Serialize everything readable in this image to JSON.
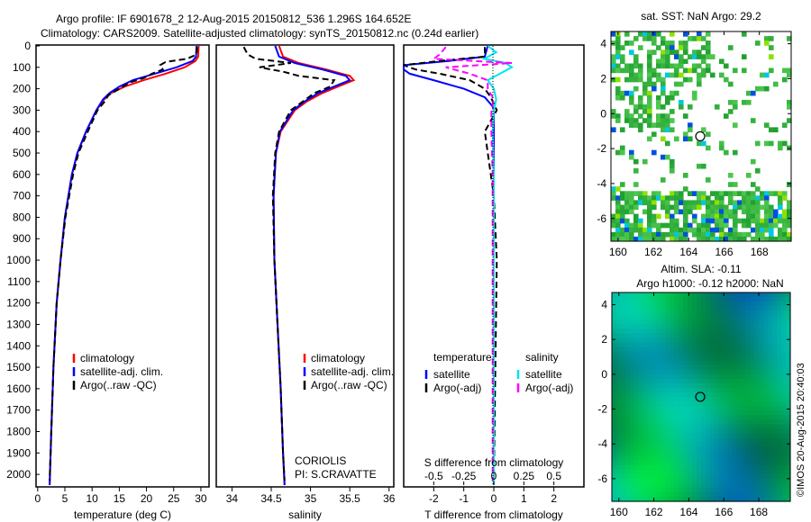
{
  "title": {
    "line1": "Argo profile: IF 6901678_2 12-Aug-2015 20150812_536 1.296S 164.652E",
    "line2": "Climatology: CARS2009. Satellite-adjusted climatology: synTS_20150812.nc (0.24d earlier)"
  },
  "colors": {
    "climatology": "#ff0000",
    "satellite": "#0000ff",
    "argo": "#000000",
    "sal_satellite": "#00e5ee",
    "sal_argo": "#ff00ff"
  },
  "chart_data": [
    {
      "type": "line",
      "id": "temperature",
      "xlabel": "temperature (deg C)",
      "ylabel": "",
      "xlim": [
        -0.3,
        31.5
      ],
      "ylim": [
        2050,
        0
      ],
      "xticks": [
        0,
        5,
        10,
        15,
        20,
        25,
        30
      ],
      "yticks": [
        0,
        100,
        200,
        300,
        400,
        500,
        600,
        700,
        800,
        900,
        1000,
        1100,
        1200,
        1300,
        1400,
        1500,
        1600,
        1700,
        1800,
        1900,
        2000
      ],
      "legend": [
        "climatology",
        "satellite-adj. clim.",
        "Argo(..raw -QC)"
      ],
      "series": [
        {
          "name": "climatology",
          "depth": [
            0,
            50,
            70,
            100,
            130,
            160,
            190,
            220,
            250,
            300,
            400,
            500,
            600,
            800,
            1000,
            1200,
            1500,
            1800,
            2050
          ],
          "values": [
            29.6,
            29.5,
            29.0,
            27.0,
            23.5,
            19.5,
            16.0,
            13.5,
            12.2,
            10.8,
            8.9,
            7.3,
            6.3,
            5.0,
            4.2,
            3.5,
            2.9,
            2.5,
            2.2
          ]
        },
        {
          "name": "satellite-adj. clim.",
          "depth": [
            0,
            50,
            70,
            100,
            130,
            160,
            190,
            220,
            250,
            300,
            400,
            500,
            600,
            800,
            1000,
            1200,
            1500,
            1800,
            2050
          ],
          "values": [
            29.2,
            29.1,
            28.5,
            25.5,
            21.5,
            17.5,
            15.0,
            13.2,
            12.0,
            10.8,
            8.9,
            7.3,
            6.3,
            5.0,
            4.2,
            3.5,
            2.9,
            2.5,
            2.2
          ]
        },
        {
          "name": "Argo(..raw -QC)",
          "depth": [
            5,
            40,
            60,
            75,
            90,
            110,
            130,
            150,
            170,
            200,
            230,
            260,
            300,
            400,
            500,
            600,
            800,
            1000,
            1200,
            1500,
            1800,
            2030
          ],
          "values": [
            29.3,
            29.2,
            27.5,
            23.5,
            22.5,
            23.0,
            21.0,
            19.5,
            17.0,
            15.0,
            13.0,
            12.3,
            11.0,
            9.2,
            7.5,
            6.5,
            5.1,
            4.2,
            3.5,
            2.9,
            2.5,
            2.2
          ]
        }
      ]
    },
    {
      "type": "line",
      "id": "salinity",
      "xlabel": "salinity",
      "xlim": [
        33.8,
        36.06
      ],
      "ylim": [
        2050,
        0
      ],
      "xticks": [
        34,
        34.5,
        35,
        35.5,
        36
      ],
      "legend": [
        "climatology",
        "satellite-adj. clim.",
        "Argo(..raw -QC)"
      ],
      "annotation": [
        "CORIOLIS",
        "PI: S.CRAVATTE"
      ],
      "series": [
        {
          "name": "climatology",
          "depth": [
            0,
            50,
            80,
            110,
            140,
            160,
            190,
            220,
            260,
            300,
            400,
            500,
            700,
            1000,
            1300,
            1600,
            1900,
            2050
          ],
          "values": [
            34.6,
            34.65,
            34.85,
            35.2,
            35.5,
            35.55,
            35.35,
            35.15,
            34.95,
            34.8,
            34.62,
            34.56,
            34.53,
            34.54,
            34.58,
            34.62,
            34.65,
            34.67
          ]
        },
        {
          "name": "satellite-adj. clim.",
          "depth": [
            0,
            50,
            80,
            110,
            140,
            160,
            190,
            220,
            260,
            300,
            400,
            500,
            700,
            1000,
            1300,
            1600,
            1900,
            2050
          ],
          "values": [
            34.55,
            34.6,
            34.8,
            35.15,
            35.45,
            35.5,
            35.3,
            35.1,
            34.92,
            34.78,
            34.61,
            34.56,
            34.53,
            34.54,
            34.58,
            34.62,
            34.65,
            34.67
          ]
        },
        {
          "name": "Argo(..raw -QC)",
          "depth": [
            5,
            40,
            60,
            80,
            100,
            120,
            140,
            160,
            190,
            220,
            260,
            300,
            400,
            500,
            700,
            1000,
            1300,
            1600,
            1900,
            2030
          ],
          "values": [
            34.15,
            34.2,
            34.3,
            34.75,
            34.35,
            34.65,
            34.85,
            35.3,
            35.25,
            35.05,
            34.9,
            34.75,
            34.6,
            34.55,
            34.52,
            34.54,
            34.58,
            34.62,
            34.65,
            34.67
          ]
        }
      ]
    },
    {
      "type": "line",
      "id": "difference",
      "xlabel": "T difference from climatology",
      "x2label": "S difference from climatology",
      "xlim": [
        -3,
        3
      ],
      "x2lim": [
        -0.75,
        0.75
      ],
      "ylim": [
        2050,
        0
      ],
      "xticks": [
        -2,
        -1,
        0,
        1,
        2
      ],
      "x2ticks": [
        "-0.5",
        "-0.25",
        "0",
        "0.25",
        "0.5"
      ],
      "legend": {
        "temperature": [
          "temperature",
          "satellite",
          "Argo(-adj)"
        ],
        "salinity": [
          "salinity",
          "satellite",
          "Argo(-adj)"
        ]
      },
      "series": [
        {
          "name": "T satellite",
          "depth": [
            0,
            50,
            70,
            90,
            110,
            130,
            160,
            200,
            240,
            280,
            300,
            400,
            600,
            1000,
            2050
          ],
          "values": [
            -0.2,
            -0.3,
            -1.5,
            -3.0,
            -3.0,
            -2.8,
            -2.0,
            -1.0,
            -0.3,
            -0.05,
            0,
            0,
            0,
            0,
            0
          ]
        },
        {
          "name": "T Argo(-adj)",
          "depth": [
            5,
            50,
            70,
            90,
            110,
            130,
            160,
            200,
            240,
            300,
            400,
            500,
            700,
            1000,
            1500,
            2030
          ],
          "values": [
            -0.3,
            -0.3,
            -1.8,
            -3.0,
            -2.6,
            -1.8,
            -0.8,
            -0.3,
            -0.1,
            0.1,
            -0.3,
            -0.2,
            0.0,
            0.1,
            0.05,
            0.0
          ]
        },
        {
          "name": "S satellite",
          "depth": [
            0,
            30,
            60,
            80,
            100,
            130,
            160,
            200,
            250,
            300,
            400,
            600,
            1000,
            2050
          ],
          "values": [
            -0.05,
            0.02,
            -0.08,
            0.1,
            0.15,
            0.05,
            -0.05,
            0.0,
            0.02,
            0.0,
            -0.01,
            0.0,
            0.0,
            0.0
          ]
        },
        {
          "name": "S Argo(-adj)",
          "depth": [
            5,
            40,
            60,
            80,
            100,
            130,
            160,
            200,
            250,
            300,
            400,
            600,
            1000,
            2030
          ],
          "values": [
            -0.4,
            -0.45,
            -0.5,
            0.15,
            -0.4,
            -0.2,
            -0.05,
            -0.05,
            0.0,
            -0.02,
            -0.02,
            -0.01,
            -0.01,
            -0.01
          ]
        }
      ]
    },
    {
      "type": "heatmap",
      "id": "sst_map",
      "title": "sat. SST: NaN Argo: 29.2",
      "xlim": [
        159.6,
        169.8
      ],
      "ylim": [
        -7.3,
        4.7
      ],
      "xticks": [
        160,
        162,
        164,
        166,
        168
      ],
      "yticks": [
        4,
        2,
        0,
        -2,
        -4,
        -6
      ],
      "marker": {
        "lon": 164.652,
        "lat": -1.296
      }
    },
    {
      "type": "heatmap",
      "id": "sla_map",
      "title": "Altim. SLA: -0.11",
      "subtitle": "Argo h1000: -0.12 h2000: NaN",
      "xlim": [
        159.6,
        169.8
      ],
      "ylim": [
        -7.3,
        4.7
      ],
      "xticks": [
        160,
        162,
        164,
        166,
        168
      ],
      "yticks": [
        4,
        2,
        0,
        -2,
        -4,
        -6
      ],
      "marker": {
        "lon": 164.652,
        "lat": -1.296
      }
    }
  ],
  "credit": "©IMOS 20-Aug-2015 20:40:03"
}
